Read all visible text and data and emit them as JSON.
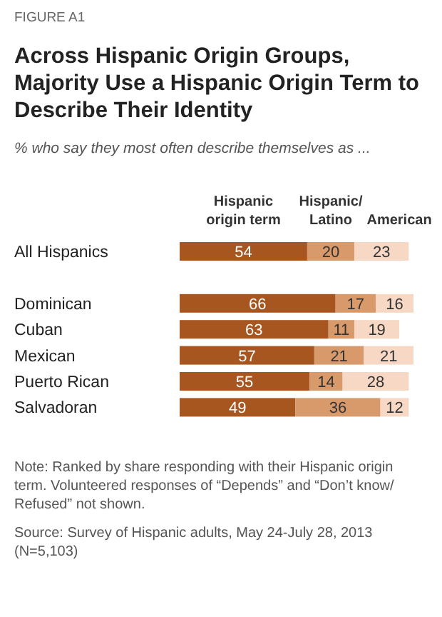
{
  "chart_data": {
    "type": "bar",
    "orientation": "horizontal",
    "stacked": true,
    "data_labels": true,
    "legend": "top",
    "subtitle": "% who say they most often describe themselves as ...",
    "title": "Across Hispanic Origin Groups, Majority Use a Hispanic Origin Term to Describe Their Identity",
    "annotations": [
      "FIGURE A1",
      "Note: Ranked by share responding with their Hispanic origin term. Volunteered responses of “Depends” and “Don’t know/Refused” not shown.",
      "Source: Survey of Hispanic adults, May 24-July 28, 2013 (N=5,103)"
    ],
    "categories": [
      "All Hispanics",
      null,
      "Dominican",
      "Cuban",
      "Mexican",
      "Puerto Rican",
      "Salvadoran"
    ],
    "series": [
      {
        "name": "Hispanic origin term",
        "color": "#a8561f",
        "values": [
          54,
          null,
          66,
          63,
          57,
          55,
          49
        ]
      },
      {
        "name": "Hispanic/Latino",
        "color": "#d99a6b",
        "values": [
          20,
          null,
          17,
          11,
          21,
          14,
          36
        ]
      },
      {
        "name": "American",
        "color": "#f6d8c4",
        "values": [
          23,
          null,
          16,
          19,
          21,
          28,
          12
        ]
      }
    ]
  }
}
